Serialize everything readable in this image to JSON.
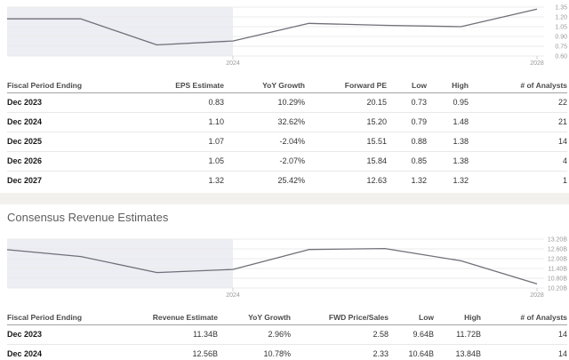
{
  "section_heading": "Consensus Revenue Estimates",
  "chart_data": [
    {
      "type": "line",
      "title": "Consensus EPS Estimates trend",
      "x": [
        2021,
        2022,
        2023,
        2024,
        2025,
        2026,
        2027,
        2028
      ],
      "values": [
        1.17,
        1.17,
        0.77,
        0.83,
        1.1,
        1.07,
        1.05,
        1.32
      ],
      "y_ticks": [
        1.35,
        1.2,
        1.05,
        0.9,
        0.75,
        0.6
      ],
      "y_tick_labels": [
        "1.35",
        "1.20",
        "1.05",
        "0.90",
        "0.75",
        "0.60"
      ],
      "x_tick_values": [
        2024,
        2028
      ],
      "x_tick_labels": [
        "2024",
        "2028"
      ],
      "ylim": [
        0.6,
        1.35
      ],
      "grid": true,
      "legend": "none",
      "shade_until": 2024,
      "line_color": "#6f6f78",
      "shade_color": "#edeef4"
    },
    {
      "type": "line",
      "title": "Consensus Revenue Estimates trend",
      "x": [
        2021,
        2022,
        2023,
        2024,
        2025,
        2026,
        2027,
        2028
      ],
      "values": [
        12.55,
        12.13,
        11.15,
        11.34,
        12.56,
        12.62,
        11.87,
        10.45
      ],
      "y_ticks": [
        13.2,
        12.6,
        12.0,
        11.4,
        10.8,
        10.2
      ],
      "y_tick_labels": [
        "13.20B",
        "12.60B",
        "12.00B",
        "11.40B",
        "10.80B",
        "10.20B"
      ],
      "x_tick_values": [
        2024,
        2028
      ],
      "x_tick_labels": [
        "2024",
        "2028"
      ],
      "ylim": [
        10.2,
        13.2
      ],
      "grid": true,
      "legend": "none",
      "shade_until": 2024,
      "line_color": "#6f6f78",
      "shade_color": "#edeef4"
    }
  ],
  "tables": [
    {
      "name": "eps-estimates",
      "columns": [
        "Fiscal Period Ending",
        "EPS Estimate",
        "YoY Growth",
        "Forward PE",
        "Low",
        "High",
        "# of Analysts"
      ],
      "rows": [
        [
          "Dec 2023",
          "0.83",
          "10.29%",
          "20.15",
          "0.73",
          "0.95",
          "22"
        ],
        [
          "Dec 2024",
          "1.10",
          "32.62%",
          "15.20",
          "0.79",
          "1.48",
          "21"
        ],
        [
          "Dec 2025",
          "1.07",
          "-2.04%",
          "15.51",
          "0.88",
          "1.38",
          "14"
        ],
        [
          "Dec 2026",
          "1.05",
          "-2.07%",
          "15.84",
          "0.85",
          "1.38",
          "4"
        ],
        [
          "Dec 2027",
          "1.32",
          "25.42%",
          "12.63",
          "1.32",
          "1.32",
          "1"
        ]
      ]
    },
    {
      "name": "revenue-estimates",
      "columns": [
        "Fiscal Period Ending",
        "Revenue Estimate",
        "YoY Growth",
        "FWD Price/Sales",
        "Low",
        "High",
        "# of Analysts"
      ],
      "rows": [
        [
          "Dec 2023",
          "11.34B",
          "2.96%",
          "2.58",
          "9.64B",
          "11.72B",
          "14"
        ],
        [
          "Dec 2024",
          "12.56B",
          "10.78%",
          "2.33",
          "10.64B",
          "13.84B",
          "14"
        ]
      ]
    }
  ]
}
